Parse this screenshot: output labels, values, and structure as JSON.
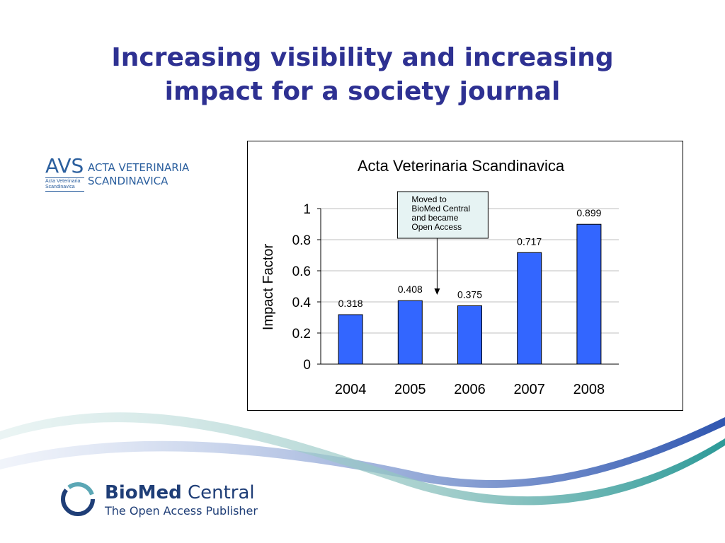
{
  "slide": {
    "title_line1": "Increasing visibility and increasing",
    "title_line2": "impact for a society journal"
  },
  "avs_logo": {
    "abbr": "AVS",
    "sub": "Acta Veterinaria Scandinavica",
    "name_line1": "ACTA VETERINARIA",
    "name_line2": "SCANDINAVICA"
  },
  "bmc_logo": {
    "brand_bold": "BioMed",
    "brand_light": "Central",
    "tagline": "The Open Access Publisher"
  },
  "colors": {
    "title": "#2E3192",
    "bar_fill": "#3366FF",
    "logo_blue": "#2B5F9E"
  },
  "chart_data": {
    "type": "bar",
    "title": "Acta Veterinaria Scandinavica",
    "xlabel": "",
    "ylabel": "Impact Factor",
    "categories": [
      "2004",
      "2005",
      "2006",
      "2007",
      "2008"
    ],
    "values": [
      0.318,
      0.408,
      0.375,
      0.717,
      0.899
    ],
    "value_labels": [
      "0.318",
      "0.408",
      "0.375",
      "0.717",
      "0.899"
    ],
    "ylim": [
      0,
      1
    ],
    "yticks": [
      0,
      0.2,
      0.4,
      0.6,
      0.8,
      1
    ],
    "ytick_labels": [
      "0",
      "0.2",
      "0.4",
      "0.6",
      "0.8",
      "1"
    ],
    "grid": true,
    "legend": "none",
    "annotation": {
      "lines": [
        "Moved to",
        "BioMed Central",
        "and became",
        "Open Access"
      ],
      "arrow_to": "between 2005 and 2006"
    }
  }
}
